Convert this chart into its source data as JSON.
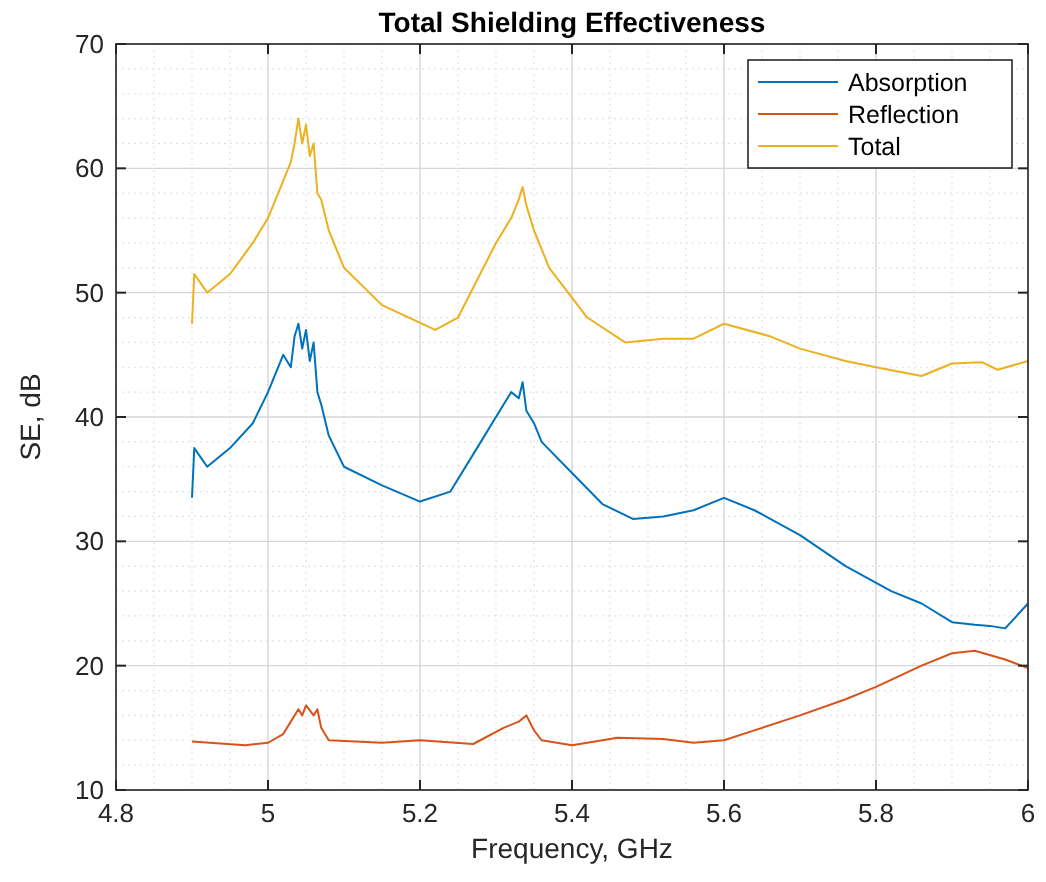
{
  "chart_data": {
    "type": "line",
    "title": "Total Shielding Effectiveness",
    "xlabel": "Frequency, GHz",
    "ylabel": "SE, dB",
    "xlim": [
      4.8,
      6
    ],
    "xticks": [
      4.8,
      5,
      5.2,
      5.4,
      5.6,
      5.8,
      6
    ],
    "ylim": [
      10,
      70
    ],
    "yticks": [
      10,
      20,
      30,
      40,
      50,
      60,
      70
    ],
    "grid": true,
    "legend": "top right",
    "series": [
      {
        "name": "Absorption",
        "color": "#0072bd",
        "x": [
          4.9,
          4.903,
          4.92,
          4.95,
          4.98,
          5.0,
          5.02,
          5.03,
          5.035,
          5.04,
          5.045,
          5.05,
          5.055,
          5.06,
          5.065,
          5.07,
          5.08,
          5.1,
          5.15,
          5.2,
          5.24,
          5.28,
          5.31,
          5.32,
          5.33,
          5.335,
          5.34,
          5.35,
          5.36,
          5.4,
          5.44,
          5.48,
          5.52,
          5.56,
          5.6,
          5.64,
          5.7,
          5.76,
          5.82,
          5.86,
          5.9,
          5.93,
          5.95,
          5.97,
          6
        ],
        "values": [
          33.5,
          37.5,
          36,
          37.5,
          39.5,
          42,
          45,
          44,
          46.5,
          47.5,
          45.5,
          47,
          44.5,
          46,
          42,
          41,
          38.5,
          36,
          34.5,
          33.2,
          34,
          38,
          41,
          42,
          41.5,
          42.8,
          40.5,
          39.5,
          38,
          35.5,
          33,
          31.8,
          32,
          32.5,
          33.5,
          32.5,
          30.5,
          28,
          26,
          25,
          23.5,
          23.3,
          23.2,
          23,
          25
        ]
      },
      {
        "name": "Reflection",
        "color": "#d95319",
        "x": [
          4.9,
          4.97,
          5.0,
          5.02,
          5.03,
          5.04,
          5.045,
          5.05,
          5.06,
          5.065,
          5.07,
          5.08,
          5.15,
          5.2,
          5.27,
          5.31,
          5.33,
          5.34,
          5.35,
          5.36,
          5.4,
          5.46,
          5.52,
          5.56,
          5.6,
          5.65,
          5.7,
          5.76,
          5.8,
          5.86,
          5.9,
          5.93,
          5.97,
          6
        ],
        "values": [
          13.9,
          13.6,
          13.8,
          14.5,
          15.5,
          16.5,
          16,
          16.8,
          16,
          16.5,
          15,
          14,
          13.8,
          14,
          13.7,
          15,
          15.5,
          16,
          14.8,
          14,
          13.6,
          14.2,
          14.1,
          13.8,
          14,
          15,
          16,
          17.3,
          18.3,
          20,
          21,
          21.2,
          20.5,
          19.8
        ]
      },
      {
        "name": "Total",
        "color": "#edb120",
        "x": [
          4.9,
          4.903,
          4.92,
          4.95,
          4.98,
          5.0,
          5.02,
          5.03,
          5.035,
          5.04,
          5.045,
          5.05,
          5.055,
          5.06,
          5.065,
          5.07,
          5.08,
          5.1,
          5.15,
          5.22,
          5.25,
          5.3,
          5.32,
          5.33,
          5.335,
          5.34,
          5.35,
          5.37,
          5.42,
          5.47,
          5.52,
          5.56,
          5.6,
          5.66,
          5.7,
          5.76,
          5.8,
          5.86,
          5.9,
          5.94,
          5.96,
          6
        ],
        "values": [
          47.5,
          51.5,
          50,
          51.5,
          54,
          56,
          59,
          60.5,
          62,
          64,
          62,
          63.5,
          61,
          62,
          58,
          57.5,
          55,
          52,
          49,
          47,
          48,
          54,
          56,
          57.5,
          58.5,
          57,
          55,
          52,
          48,
          46,
          46.3,
          46.3,
          47.5,
          46.5,
          45.5,
          44.5,
          44,
          43.3,
          44.3,
          44.4,
          43.8,
          44.5
        ]
      }
    ]
  }
}
